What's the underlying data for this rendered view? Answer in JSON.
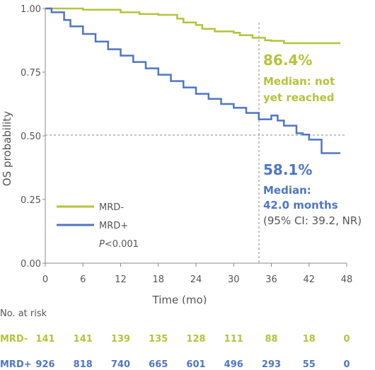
{
  "colors": {
    "mrd_neg": "#b5c33a",
    "mrd_pos": "#4f76c4",
    "axis": "#888888",
    "text": "#555555"
  },
  "chart_data": {
    "type": "line",
    "subtype": "kaplan-meier",
    "title": "",
    "xlabel": "Time (mo)",
    "ylabel": "OS probability",
    "xlim": [
      0,
      48
    ],
    "ylim": [
      0,
      1
    ],
    "x_ticks": [
      "0",
      "6",
      "12",
      "18",
      "24",
      "30",
      "36",
      "42",
      "48"
    ],
    "y_ticks": [
      "0.00",
      "0.25",
      "0.50",
      "0.75",
      "1.00"
    ],
    "reference_lines": {
      "y": 0.5,
      "x": 36
    },
    "legend_position": "lower-left",
    "series": [
      {
        "name": "MRD-",
        "color": "#b5c33a",
        "points": [
          [
            0,
            1.0
          ],
          [
            6,
            0.995
          ],
          [
            12,
            0.985
          ],
          [
            13.5,
            0.985
          ],
          [
            15,
            0.978
          ],
          [
            18,
            0.975
          ],
          [
            21,
            0.96
          ],
          [
            22,
            0.945
          ],
          [
            24,
            0.935
          ],
          [
            25,
            0.92
          ],
          [
            27,
            0.91
          ],
          [
            30,
            0.905
          ],
          [
            31,
            0.895
          ],
          [
            33,
            0.885
          ],
          [
            35,
            0.875
          ],
          [
            36,
            0.873
          ],
          [
            38,
            0.864
          ],
          [
            41,
            0.864
          ],
          [
            47,
            0.864
          ]
        ]
      },
      {
        "name": "MRD+",
        "color": "#4f76c4",
        "points": [
          [
            0,
            1.0
          ],
          [
            1,
            0.985
          ],
          [
            3,
            0.955
          ],
          [
            4,
            0.93
          ],
          [
            6,
            0.9
          ],
          [
            8,
            0.87
          ],
          [
            10,
            0.84
          ],
          [
            12,
            0.815
          ],
          [
            14,
            0.79
          ],
          [
            16,
            0.765
          ],
          [
            18,
            0.74
          ],
          [
            20,
            0.715
          ],
          [
            22,
            0.69
          ],
          [
            24,
            0.665
          ],
          [
            26,
            0.645
          ],
          [
            28,
            0.625
          ],
          [
            30,
            0.61
          ],
          [
            32,
            0.59
          ],
          [
            34,
            0.565
          ],
          [
            36,
            0.58
          ],
          [
            37,
            0.56
          ],
          [
            38,
            0.54
          ],
          [
            40,
            0.51
          ],
          [
            41,
            0.505
          ],
          [
            42,
            0.485
          ],
          [
            43,
            0.485
          ],
          [
            44,
            0.432
          ],
          [
            47,
            0.432
          ]
        ]
      }
    ],
    "annotations": {
      "mrd_neg_pct": "86.4%",
      "mrd_neg_median_1": "Median: not",
      "mrd_neg_median_2": "yet reached",
      "mrd_pos_pct": "58.1%",
      "mrd_pos_median_1": "Median:",
      "mrd_pos_median_2": "42.0 months",
      "mrd_pos_ci": "(95% CI: 39.2, NR)",
      "p_prefix": "P",
      "p_value": "<0.001"
    }
  },
  "risk_table": {
    "title": "No. at risk",
    "rows": [
      {
        "label": "MRD-",
        "values": [
          "141",
          "141",
          "139",
          "135",
          "128",
          "111",
          "88",
          "18",
          "0"
        ]
      },
      {
        "label": "MRD+",
        "values": [
          "926",
          "818",
          "740",
          "665",
          "601",
          "496",
          "293",
          "55",
          "0"
        ]
      }
    ]
  }
}
